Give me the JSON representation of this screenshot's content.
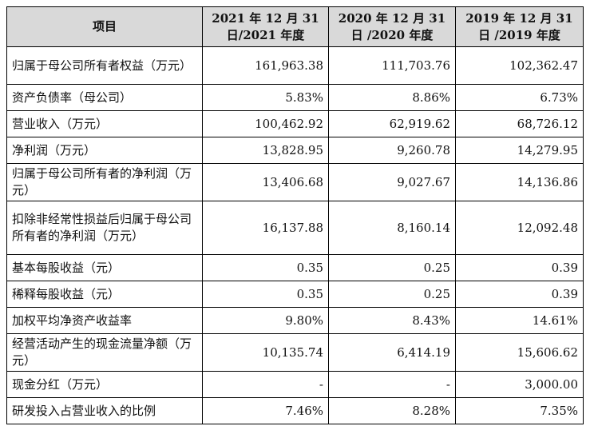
{
  "header": {
    "item": "项目",
    "col2021": "2021 年 12 月 31 日/2021 年度",
    "col2020": "2020 年 12 月 31 日 /2020 年度",
    "col2019": "2019 年 12 月 31 日 /2019 年度"
  },
  "rows": [
    {
      "label": "归属于母公司所有者权益（万元）",
      "v2021": "161,963.38",
      "v2020": "111,703.76",
      "v2019": "102,362.47"
    },
    {
      "label": "资产负债率（母公司）",
      "v2021": "5.83%",
      "v2020": "8.86%",
      "v2019": "6.73%"
    },
    {
      "label": "营业收入（万元）",
      "v2021": "100,462.92",
      "v2020": "62,919.62",
      "v2019": "68,726.12"
    },
    {
      "label": "净利润（万元）",
      "v2021": "13,828.95",
      "v2020": "9,260.78",
      "v2019": "14,279.95"
    },
    {
      "label": "归属于母公司所有者的净利润（万元）",
      "v2021": "13,406.68",
      "v2020": "9,027.67",
      "v2019": "14,136.86"
    },
    {
      "label": "扣除非经常性损益后归属于母公司所有者的净利润（万元）",
      "v2021": "16,137.88",
      "v2020": "8,160.14",
      "v2019": "12,092.48"
    },
    {
      "label": "基本每股收益（元）",
      "v2021": "0.35",
      "v2020": "0.25",
      "v2019": "0.39"
    },
    {
      "label": "稀释每股收益（元）",
      "v2021": "0.35",
      "v2020": "0.25",
      "v2019": "0.39"
    },
    {
      "label": "加权平均净资产收益率",
      "v2021": "9.80%",
      "v2020": "8.43%",
      "v2019": "14.61%"
    },
    {
      "label": "经营活动产生的现金流量净额（万元）",
      "v2021": "10,135.74",
      "v2020": "6,414.19",
      "v2019": "15,606.62"
    },
    {
      "label": "现金分红（万元）",
      "v2021": "-",
      "v2020": "-",
      "v2019": "3,000.00"
    },
    {
      "label": "研发投入占营业收入的比例",
      "v2021": "7.46%",
      "v2020": "8.28%",
      "v2019": "7.35%"
    }
  ]
}
